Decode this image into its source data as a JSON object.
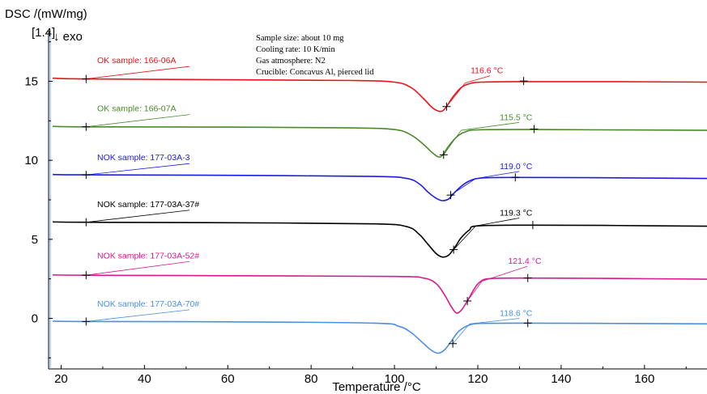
{
  "chart_data": {
    "type": "line",
    "title": "",
    "ylabel": "DSC /(mW/mg)",
    "ylabel_sub": "[1.4]",
    "exo_label": "↓ exo",
    "xlabel": "Temperature /°C",
    "xlim": [
      17,
      175
    ],
    "ylim": [
      -3.2,
      18.2
    ],
    "x_ticks": [
      20,
      40,
      60,
      80,
      100,
      120,
      140,
      160
    ],
    "y_ticks": [
      0,
      5,
      10,
      15
    ],
    "grid": false,
    "info": [
      "Sample size: about 10 mg",
      "Cooling rate: 10 K/min",
      "Gas atmosphere: N2",
      "Crucible: Concavus Al, pierced lid"
    ],
    "series": [
      {
        "name": "OK sample: 166-06A",
        "color": "#e8141b",
        "onset_label": "116.6 °C",
        "points": [
          [
            18,
            15.2
          ],
          [
            26,
            15.15
          ],
          [
            60,
            15.1
          ],
          [
            90,
            15.05
          ],
          [
            100,
            14.95
          ],
          [
            104,
            14.6
          ],
          [
            107,
            13.9
          ],
          [
            109,
            13.35
          ],
          [
            110.5,
            13.12
          ],
          [
            111.5,
            13.12
          ],
          [
            112.5,
            13.4
          ],
          [
            114,
            14.0
          ],
          [
            116,
            14.6
          ],
          [
            118,
            14.85
          ],
          [
            121,
            14.95
          ],
          [
            131,
            14.98
          ],
          [
            150,
            14.98
          ],
          [
            175,
            14.95
          ]
        ],
        "onset": {
          "marker": [
            112.5,
            13.4
          ],
          "label_anchor": [
            121,
            15.5
          ],
          "leader_end": [
            117,
            14.9
          ]
        },
        "name_anchor": {
          "marker": [
            26,
            15.15
          ],
          "label_pos": [
            27.5,
            16.15
          ]
        },
        "end_marker": [
          131,
          15.02
        ]
      },
      {
        "name": "OK sample: 166-07A",
        "color": "#4a8a2a",
        "onset_label": "115.5 °C",
        "points": [
          [
            18,
            12.15
          ],
          [
            26,
            12.12
          ],
          [
            60,
            12.1
          ],
          [
            90,
            12.05
          ],
          [
            100,
            11.95
          ],
          [
            104,
            11.6
          ],
          [
            107,
            11.0
          ],
          [
            109,
            10.5
          ],
          [
            110.5,
            10.22
          ],
          [
            111.5,
            10.32
          ],
          [
            113,
            10.9
          ],
          [
            115,
            11.5
          ],
          [
            117,
            11.8
          ],
          [
            120,
            11.93
          ],
          [
            133,
            11.95
          ],
          [
            150,
            11.93
          ],
          [
            175,
            11.9
          ]
        ],
        "onset": {
          "marker": [
            111.8,
            10.35
          ],
          "label_anchor": [
            128,
            12.55
          ],
          "leader_end": [
            116,
            11.9
          ]
        },
        "name_anchor": {
          "marker": [
            26,
            12.12
          ],
          "label_pos": [
            27.5,
            13.1
          ]
        },
        "end_marker": [
          133.5,
          11.98
        ]
      },
      {
        "name": "NOK sample: 177-03A-3",
        "color": "#1c1ce6",
        "onset_label": "119.0 °C",
        "points": [
          [
            18,
            9.1
          ],
          [
            26,
            9.08
          ],
          [
            60,
            9.05
          ],
          [
            95,
            8.98
          ],
          [
            103,
            8.85
          ],
          [
            106,
            8.5
          ],
          [
            108,
            8.0
          ],
          [
            110,
            7.6
          ],
          [
            111.5,
            7.45
          ],
          [
            113,
            7.55
          ],
          [
            114,
            7.85
          ],
          [
            116,
            8.35
          ],
          [
            118,
            8.7
          ],
          [
            121,
            8.88
          ],
          [
            129,
            8.92
          ],
          [
            150,
            8.9
          ],
          [
            175,
            8.85
          ]
        ],
        "onset": {
          "marker": [
            113.5,
            7.8
          ],
          "label_anchor": [
            128,
            9.45
          ],
          "leader_end": [
            119.5,
            8.85
          ]
        },
        "name_anchor": {
          "marker": [
            26,
            9.08
          ],
          "label_pos": [
            27.5,
            10.0
          ]
        },
        "end_marker": [
          129,
          8.92
        ]
      },
      {
        "name": "NOK sample: 177-03A-37#",
        "color": "#000000",
        "onset_label": "119.3 °C",
        "points": [
          [
            18,
            6.1
          ],
          [
            26,
            6.08
          ],
          [
            60,
            6.05
          ],
          [
            95,
            5.98
          ],
          [
            103,
            5.8
          ],
          [
            106,
            5.3
          ],
          [
            108,
            4.7
          ],
          [
            110,
            4.1
          ],
          [
            111.5,
            3.88
          ],
          [
            113,
            4.0
          ],
          [
            114.5,
            4.5
          ],
          [
            116,
            5.1
          ],
          [
            118,
            5.6
          ],
          [
            120,
            5.85
          ],
          [
            133,
            5.9
          ],
          [
            150,
            5.88
          ],
          [
            175,
            5.83
          ]
        ],
        "onset": {
          "marker": [
            114.2,
            4.35
          ],
          "label_anchor": [
            128,
            6.5
          ],
          "leader_end": [
            119.5,
            5.85
          ]
        },
        "name_anchor": {
          "marker": [
            26,
            6.08
          ],
          "label_pos": [
            27.5,
            7.05
          ]
        },
        "end_marker": [
          133.2,
          5.9
        ]
      },
      {
        "name": "NOK sample: 177-03A-52#",
        "color": "#d91a8c",
        "onset_label": "121.4 °C",
        "points": [
          [
            18,
            2.75
          ],
          [
            26,
            2.73
          ],
          [
            60,
            2.7
          ],
          [
            100,
            2.65
          ],
          [
            107,
            2.55
          ],
          [
            110,
            2.2
          ],
          [
            112,
            1.5
          ],
          [
            113.5,
            0.8
          ],
          [
            114.8,
            0.35
          ],
          [
            116,
            0.5
          ],
          [
            117.5,
            1.1
          ],
          [
            119,
            1.8
          ],
          [
            120.5,
            2.3
          ],
          [
            123,
            2.52
          ],
          [
            132,
            2.55
          ],
          [
            150,
            2.53
          ],
          [
            175,
            2.48
          ]
        ],
        "onset": {
          "marker": [
            117.5,
            1.1
          ],
          "label_anchor": [
            130,
            3.45
          ],
          "leader_end": [
            121,
            2.35
          ]
        },
        "name_anchor": {
          "marker": [
            26,
            2.73
          ],
          "label_pos": [
            27.5,
            3.8
          ]
        },
        "end_marker": [
          132,
          2.55
        ]
      },
      {
        "name": "NOK sample: 177-03A-70#",
        "color": "#4b8fe0",
        "onset_label": "118.6 °C",
        "points": [
          [
            18,
            -0.18
          ],
          [
            26,
            -0.2
          ],
          [
            60,
            -0.22
          ],
          [
            95,
            -0.3
          ],
          [
            101,
            -0.5
          ],
          [
            104,
            -0.9
          ],
          [
            107,
            -1.6
          ],
          [
            109,
            -2.05
          ],
          [
            110.5,
            -2.2
          ],
          [
            112,
            -2.0
          ],
          [
            113.5,
            -1.5
          ],
          [
            115.5,
            -0.8
          ],
          [
            118,
            -0.42
          ],
          [
            121,
            -0.32
          ],
          [
            132,
            -0.3
          ],
          [
            150,
            -0.32
          ],
          [
            175,
            -0.35
          ]
        ],
        "onset": {
          "marker": [
            114,
            -1.6
          ],
          "label_anchor": [
            128,
            0.15
          ],
          "leader_end": [
            118,
            -0.35
          ]
        },
        "name_anchor": {
          "marker": [
            26,
            -0.2
          ],
          "label_pos": [
            27.5,
            0.75
          ]
        },
        "end_marker": [
          132,
          -0.3
        ]
      }
    ]
  }
}
